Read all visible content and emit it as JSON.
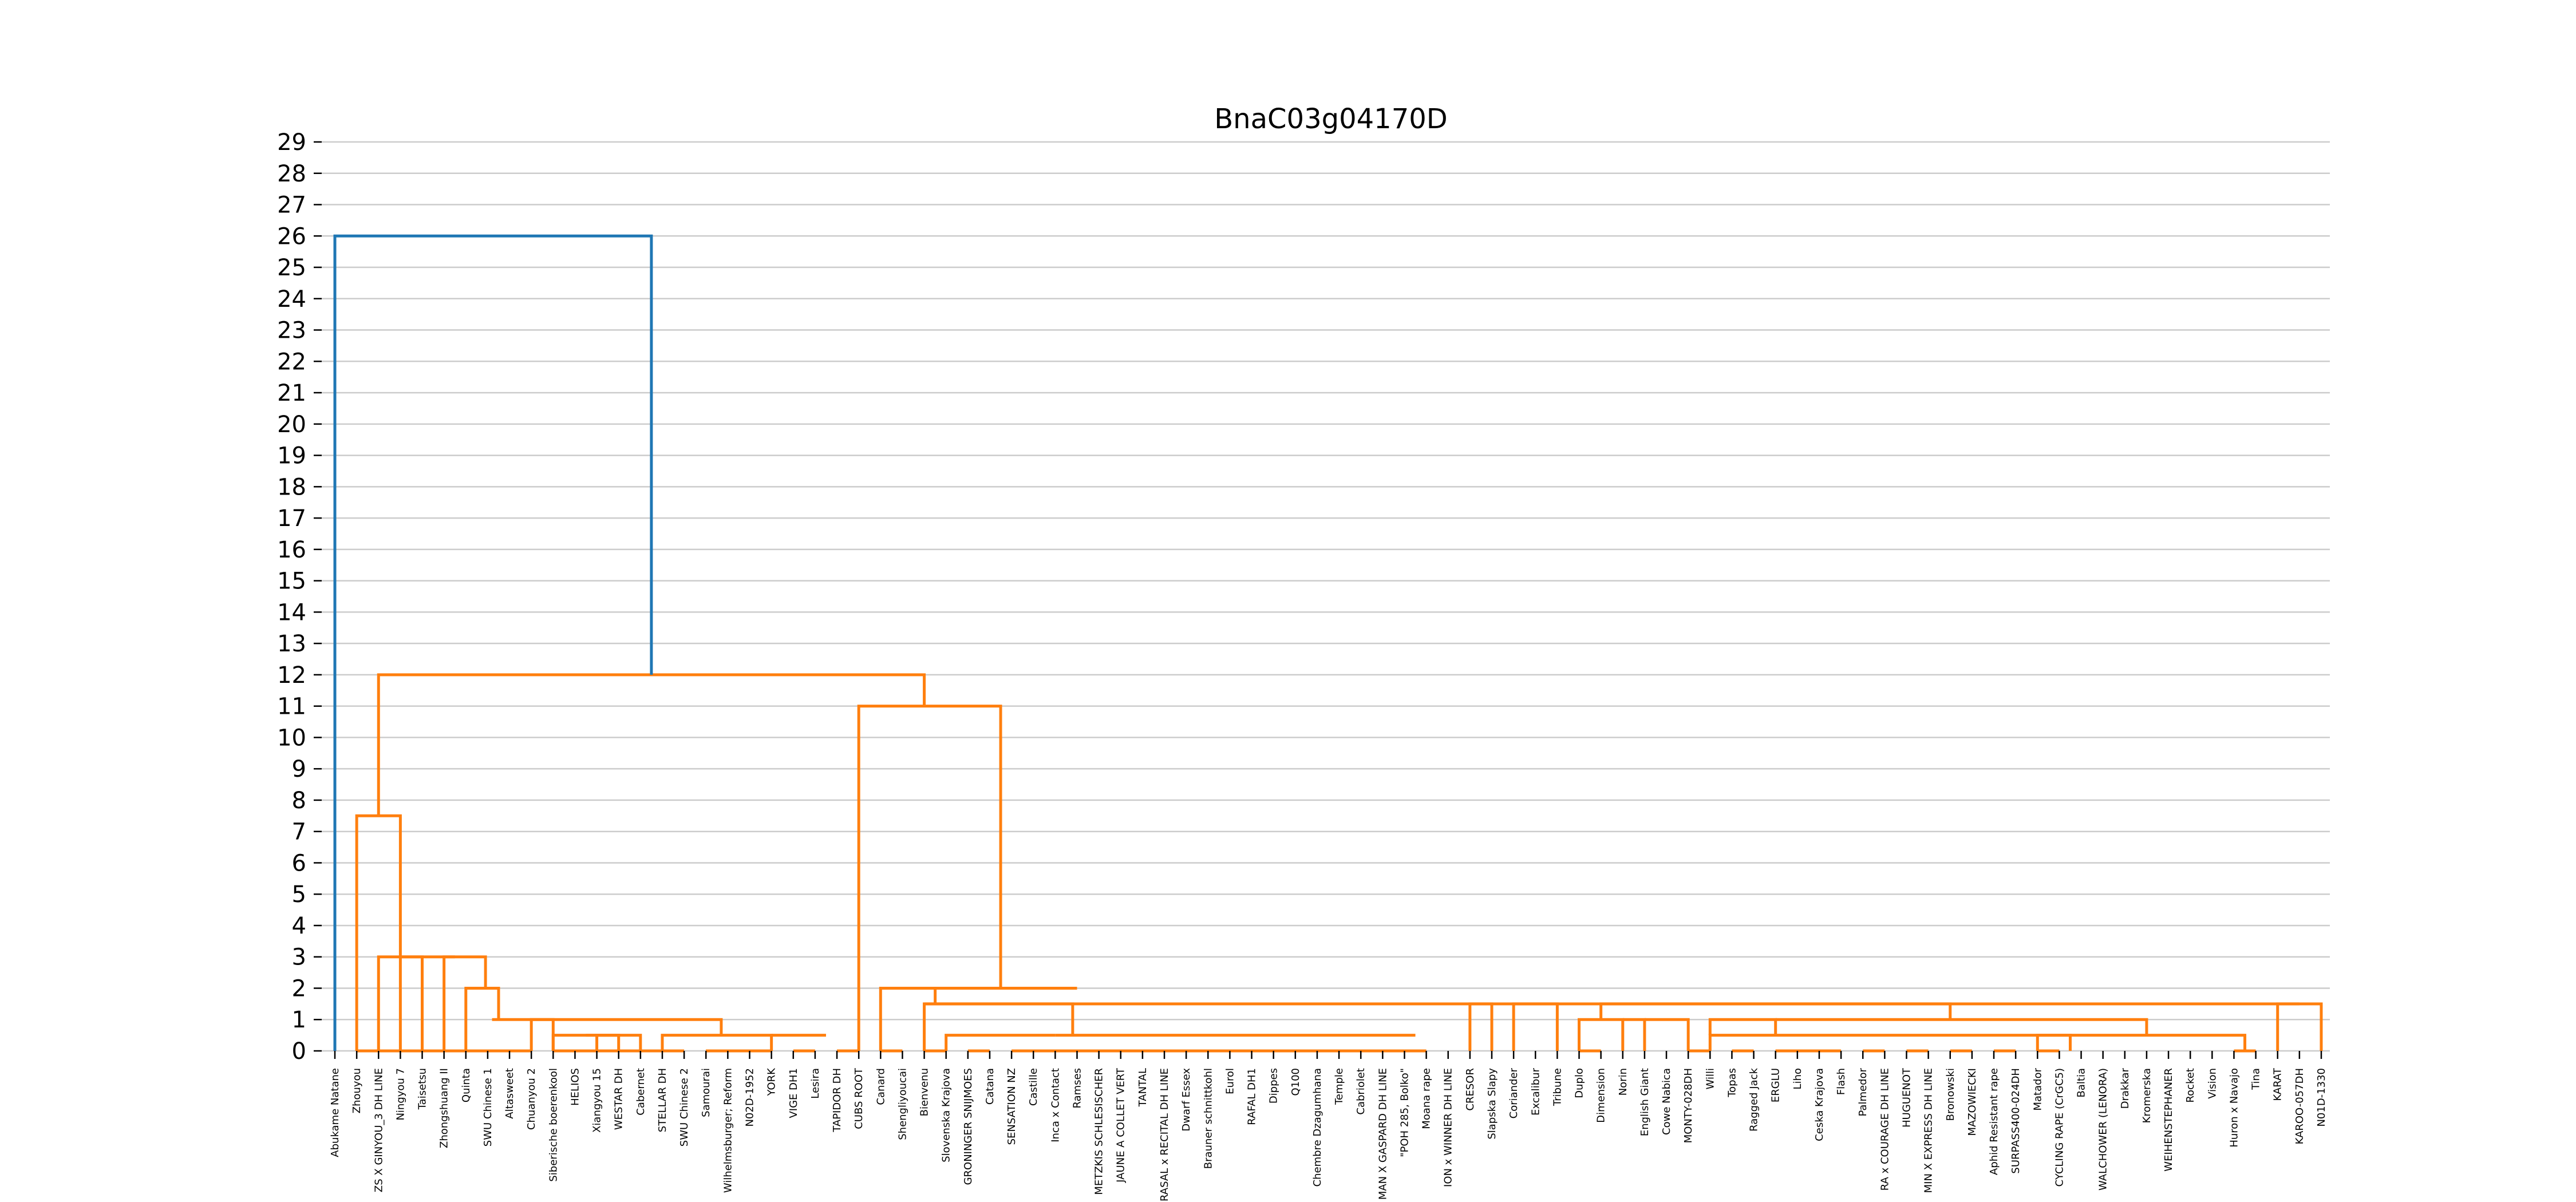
{
  "chart_data": {
    "type": "dendrogram",
    "title": "BnaC03g04170D",
    "xlabel": "",
    "ylabel": "",
    "ylim": [
      0,
      29
    ],
    "yticks": [
      "0",
      "1",
      "2",
      "3",
      "4",
      "5",
      "6",
      "7",
      "8",
      "9",
      "10",
      "11",
      "12",
      "13",
      "14",
      "15",
      "16",
      "17",
      "18",
      "19",
      "20",
      "21",
      "22",
      "23",
      "24",
      "25",
      "26",
      "27",
      "28",
      "29"
    ],
    "grid": "horizontal",
    "colors": {
      "root_link": "#1f77b4",
      "cluster": "#ff7f0e"
    },
    "leaves": [
      "Abukame Natane",
      "Zhouyou",
      "ZS X GINYOU_3 DH LINE",
      "Ningyou 7",
      "Taisetsu",
      "Zhongshuang II",
      "Quinta",
      "SWU Chinese 1",
      "Altasweet",
      "Chuanyou 2",
      "Siberische boerenkool",
      "HELIOS",
      "Xiangyou 15",
      "WESTAR DH",
      "Cabernet",
      "STELLAR DH",
      "SWU Chinese 2",
      "Samourai",
      "Wilhelmsburger; Reform",
      "N02D-1952",
      "YORK",
      "VIGE DH1",
      "Lesira",
      "TAPIDOR DH",
      "CUBS ROOT",
      "Canard",
      "Shengliyoucai",
      "Bienvenu",
      "Slovenska Krajova",
      "GRONINGER SNIJMOES",
      "Catana",
      "SENSATION NZ",
      "Castille",
      "Inca x Contact",
      "Ramses",
      "METZKIS SCHLESISCHER",
      "JAUNE A COLLET VERT",
      "TANTAL",
      "RASAL x RECITAL DH LINE",
      "Dwarf Essex",
      "Brauner schnittkohl",
      "Eurol",
      "RAFAL DH1",
      "Dippes",
      "Q100",
      "Chembre Dzagumhana",
      "Temple",
      "Cabriolet",
      "MAN X GASPARD DH LINE",
      "\"POH 285, Bolko\"",
      "Moana rape",
      "ION x WINNER DH LINE",
      "CRESOR",
      "Slapska Slapy",
      "Coriander",
      "Excalibur",
      "Tribune",
      "Duplo",
      "Dimension",
      "Norin",
      "English Giant",
      "Cowe Nabica",
      "MONTY-028DH",
      "Willi",
      "Topas",
      "Ragged Jack",
      "ERGLU",
      "Liho",
      "Ceska Krajova",
      "Flash",
      "Palmedor",
      "RA x COURAGE DH LINE",
      "HUGUENOT",
      "MIN X EXPRESS DH LINE",
      "Bronowski",
      "MAZOWIECKI",
      "Aphid Resistant rape",
      "SURPASS400-024DH",
      "Matador",
      "CYCLING RAPE (CrGC5)",
      "Baltia",
      "WALCHOWER (LENORA)",
      "Drakkar",
      "Kromerska",
      "WEIHENSTEPHANER",
      "Rocket",
      "Vision",
      "Huron x Navajo",
      "Tina",
      "KARAT",
      "KAROO-057DH",
      "N01D-1330"
    ],
    "merges": [
      [
        1,
        2,
        0
      ],
      [
        3,
        2,
        0
      ],
      [
        4,
        2,
        0
      ],
      [
        5,
        2,
        0
      ],
      [
        6,
        2,
        0
      ],
      [
        7,
        1,
        0
      ],
      [
        8,
        1,
        0
      ],
      [
        9,
        1,
        0
      ],
      [
        10,
        10,
        0
      ],
      [
        12,
        13,
        0.5
      ],
      [
        14,
        10,
        0.5
      ],
      [
        15,
        10,
        0
      ],
      [
        16,
        10,
        0
      ],
      [
        17,
        17,
        0
      ],
      [
        18,
        17,
        0
      ],
      [
        19,
        17,
        0
      ],
      [
        20,
        17,
        0
      ],
      [
        21,
        21,
        0
      ],
      [
        22,
        21,
        0
      ],
      [
        23,
        23,
        0
      ],
      [
        24,
        23,
        0
      ],
      [
        25,
        25,
        0
      ],
      [
        26,
        25,
        0
      ],
      [
        27,
        27,
        0
      ],
      [
        28,
        27,
        0
      ],
      [
        29,
        29,
        0
      ],
      [
        30,
        29,
        0
      ],
      [
        31,
        31,
        0
      ],
      [
        32,
        31,
        0
      ],
      [
        33,
        31,
        0
      ],
      [
        34,
        31,
        0
      ],
      [
        35,
        31,
        0
      ],
      [
        36,
        31,
        0
      ],
      [
        37,
        31,
        0
      ],
      [
        38,
        31,
        0
      ],
      [
        39,
        31,
        0
      ],
      [
        40,
        31,
        0
      ],
      [
        41,
        31,
        0
      ],
      [
        42,
        31,
        0
      ],
      [
        43,
        31,
        0
      ],
      [
        44,
        31,
        0
      ],
      [
        45,
        31,
        0
      ],
      [
        46,
        31,
        0
      ],
      [
        47,
        31,
        0
      ],
      [
        48,
        31,
        0
      ],
      [
        49,
        31,
        0
      ],
      [
        50,
        49,
        0
      ],
      [
        54,
        54,
        0
      ],
      [
        57,
        57,
        0
      ],
      [
        58,
        57,
        0
      ],
      [
        62,
        62,
        0
      ],
      [
        63,
        62,
        0
      ],
      [
        64,
        64,
        0
      ],
      [
        65,
        64,
        0
      ],
      [
        66,
        66,
        0
      ],
      [
        67,
        66,
        0
      ],
      [
        68,
        66,
        0
      ],
      [
        69,
        66,
        0
      ],
      [
        70,
        70,
        0
      ],
      [
        71,
        70,
        0
      ],
      [
        72,
        72,
        0
      ],
      [
        73,
        72,
        0
      ],
      [
        74,
        74,
        0
      ],
      [
        75,
        74,
        0
      ],
      [
        76,
        76,
        0
      ],
      [
        77,
        76,
        0
      ],
      [
        78,
        78,
        0
      ],
      [
        79,
        78,
        0
      ],
      [
        87,
        87,
        0
      ],
      [
        88,
        87,
        0
      ]
    ]
  }
}
